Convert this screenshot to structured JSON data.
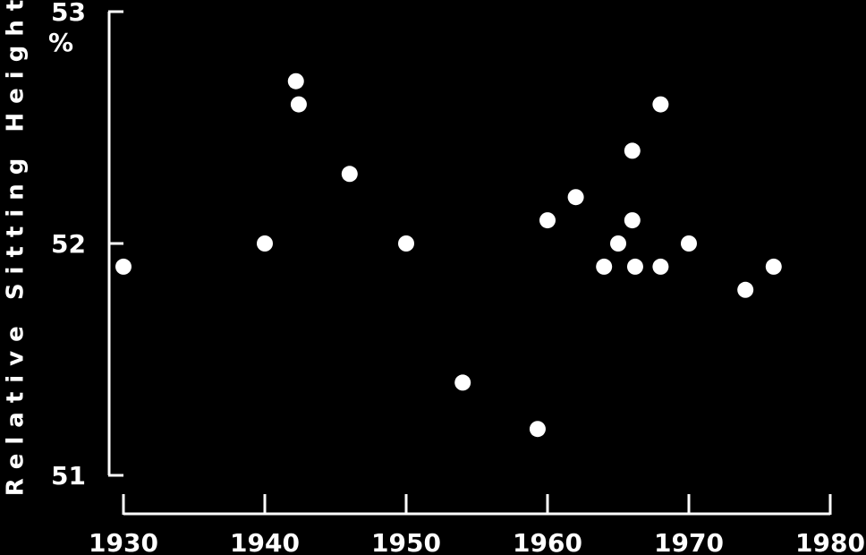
{
  "chart_data": {
    "type": "scatter",
    "title": "",
    "xlabel": "",
    "ylabel": "Relative Sitting Height",
    "y_unit": "%",
    "xlim": [
      1930,
      1980
    ],
    "ylim": [
      51,
      53
    ],
    "x_ticks": [
      1930,
      1940,
      1950,
      1960,
      1970,
      1980
    ],
    "y_ticks": [
      51,
      52,
      53
    ],
    "grid": false,
    "points": [
      {
        "x": 1930,
        "y": 51.9
      },
      {
        "x": 1940,
        "y": 52.0
      },
      {
        "x": 1942.2,
        "y": 52.7
      },
      {
        "x": 1942.4,
        "y": 52.6
      },
      {
        "x": 1946,
        "y": 52.3
      },
      {
        "x": 1950,
        "y": 52.0
      },
      {
        "x": 1954,
        "y": 51.4
      },
      {
        "x": 1959.3,
        "y": 51.2
      },
      {
        "x": 1960,
        "y": 52.1
      },
      {
        "x": 1962,
        "y": 52.2
      },
      {
        "x": 1964,
        "y": 51.9
      },
      {
        "x": 1965,
        "y": 52.0
      },
      {
        "x": 1966,
        "y": 52.1
      },
      {
        "x": 1966,
        "y": 52.4
      },
      {
        "x": 1966.2,
        "y": 51.9
      },
      {
        "x": 1968,
        "y": 52.6
      },
      {
        "x": 1968,
        "y": 51.9
      },
      {
        "x": 1970,
        "y": 52.0
      },
      {
        "x": 1974,
        "y": 51.8
      },
      {
        "x": 1976,
        "y": 51.9
      }
    ]
  }
}
